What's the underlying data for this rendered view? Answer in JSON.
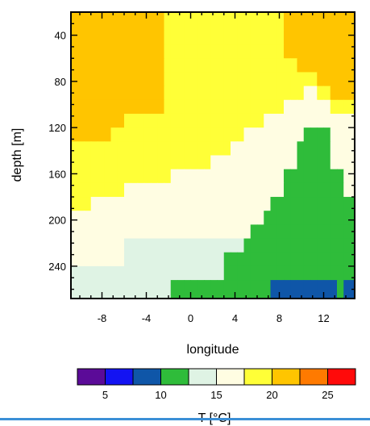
{
  "chart_data": {
    "type": "heatmap",
    "xlabel": "longitude",
    "ylabel": "depth [m]",
    "x_ticks": [
      -8,
      -4,
      0,
      4,
      8,
      12
    ],
    "y_ticks": [
      40,
      80,
      120,
      160,
      200,
      240
    ],
    "xlim": [
      -10.8,
      14.8
    ],
    "ylim": [
      20,
      268
    ],
    "x_cell_edges": [
      -10.8,
      -10.2,
      -9.6,
      -9.0,
      -8.4,
      -7.8,
      -7.2,
      -6.6,
      -6.0,
      -5.4,
      -4.8,
      -4.2,
      -3.6,
      -3.0,
      -2.4,
      -1.8,
      -1.2,
      -0.6,
      0.0,
      0.6,
      1.2,
      1.8,
      2.4,
      3.0,
      3.6,
      4.2,
      4.8,
      5.4,
      6.0,
      6.6,
      7.2,
      7.8,
      8.4,
      9.0,
      9.6,
      10.2,
      10.8,
      11.4,
      12.0,
      12.6,
      13.2,
      13.8,
      14.4,
      14.8
    ],
    "depth_cell_edges": [
      20,
      36,
      48,
      60,
      72,
      84,
      96,
      108,
      120,
      132,
      144,
      156,
      168,
      180,
      192,
      204,
      216,
      228,
      240,
      252,
      268
    ],
    "temperature_levels": [
      [
        26,
        26,
        26,
        26,
        26,
        26,
        26,
        26,
        26,
        26,
        26,
        26,
        26,
        26,
        22,
        22,
        22,
        22,
        22,
        22,
        22,
        22,
        22,
        22,
        22,
        22,
        22,
        22,
        22,
        22,
        22,
        22,
        26,
        26,
        26,
        26,
        26,
        26,
        26,
        26,
        26,
        26,
        26
      ],
      [
        26,
        26,
        26,
        26,
        26,
        26,
        26,
        26,
        26,
        26,
        26,
        26,
        26,
        26,
        22,
        22,
        22,
        22,
        22,
        22,
        22,
        22,
        22,
        22,
        22,
        22,
        22,
        22,
        22,
        22,
        22,
        22,
        26,
        26,
        26,
        26,
        26,
        26,
        26,
        26,
        26,
        26,
        26
      ],
      [
        26,
        26,
        26,
        26,
        26,
        26,
        26,
        26,
        26,
        26,
        26,
        26,
        26,
        26,
        22,
        22,
        22,
        22,
        22,
        22,
        22,
        22,
        22,
        22,
        22,
        22,
        22,
        22,
        22,
        22,
        22,
        22,
        26,
        26,
        26,
        26,
        26,
        26,
        26,
        26,
        26,
        26,
        26
      ],
      [
        26,
        26,
        26,
        26,
        26,
        26,
        26,
        26,
        26,
        26,
        26,
        26,
        26,
        26,
        22,
        22,
        22,
        22,
        22,
        22,
        22,
        22,
        22,
        22,
        22,
        22,
        22,
        22,
        22,
        22,
        22,
        22,
        22,
        22,
        26,
        26,
        26,
        26,
        26,
        26,
        26,
        26,
        26
      ],
      [
        26,
        26,
        26,
        26,
        26,
        26,
        26,
        26,
        26,
        26,
        26,
        26,
        26,
        26,
        22,
        22,
        22,
        22,
        22,
        22,
        22,
        22,
        22,
        22,
        22,
        22,
        22,
        22,
        22,
        22,
        22,
        22,
        22,
        22,
        22,
        22,
        22,
        26,
        26,
        26,
        26,
        26,
        26
      ],
      [
        26,
        26,
        26,
        26,
        26,
        26,
        26,
        26,
        26,
        26,
        26,
        26,
        26,
        26,
        22,
        22,
        22,
        22,
        22,
        22,
        22,
        22,
        22,
        22,
        22,
        22,
        22,
        22,
        22,
        22,
        22,
        22,
        22,
        22,
        22,
        17,
        17,
        22,
        22,
        26,
        26,
        26,
        26
      ],
      [
        26,
        26,
        26,
        26,
        26,
        26,
        26,
        26,
        26,
        26,
        26,
        26,
        26,
        26,
        22,
        22,
        22,
        22,
        22,
        22,
        22,
        22,
        22,
        22,
        22,
        22,
        22,
        22,
        22,
        22,
        22,
        22,
        17,
        17,
        17,
        17,
        17,
        17,
        17,
        22,
        22,
        22,
        22
      ],
      [
        26,
        26,
        26,
        26,
        26,
        26,
        26,
        26,
        22,
        22,
        22,
        22,
        22,
        22,
        22,
        22,
        22,
        22,
        22,
        22,
        22,
        22,
        22,
        22,
        22,
        22,
        22,
        22,
        22,
        17,
        17,
        17,
        17,
        17,
        17,
        17,
        17,
        17,
        17,
        17,
        17,
        17,
        17
      ],
      [
        26,
        26,
        26,
        26,
        26,
        26,
        22,
        22,
        22,
        22,
        22,
        22,
        22,
        22,
        22,
        22,
        22,
        22,
        22,
        22,
        22,
        22,
        22,
        22,
        22,
        22,
        17,
        17,
        17,
        17,
        17,
        17,
        17,
        17,
        17,
        13,
        13,
        13,
        13,
        17,
        17,
        17,
        17
      ],
      [
        22,
        22,
        22,
        22,
        22,
        22,
        22,
        22,
        22,
        22,
        22,
        22,
        22,
        22,
        22,
        22,
        22,
        22,
        22,
        22,
        22,
        22,
        22,
        22,
        17,
        17,
        17,
        17,
        17,
        17,
        17,
        17,
        17,
        17,
        13,
        13,
        13,
        13,
        13,
        17,
        17,
        17,
        17
      ],
      [
        22,
        22,
        22,
        22,
        22,
        22,
        22,
        22,
        22,
        22,
        22,
        22,
        22,
        22,
        22,
        22,
        22,
        22,
        22,
        22,
        22,
        17,
        17,
        17,
        17,
        17,
        17,
        17,
        17,
        17,
        17,
        17,
        17,
        17,
        13,
        13,
        13,
        13,
        13,
        17,
        17,
        17,
        17
      ],
      [
        22,
        22,
        22,
        22,
        22,
        22,
        22,
        22,
        22,
        22,
        22,
        22,
        22,
        22,
        22,
        17,
        17,
        17,
        17,
        17,
        17,
        17,
        17,
        17,
        17,
        17,
        17,
        17,
        17,
        17,
        17,
        17,
        13,
        13,
        13,
        13,
        13,
        13,
        13,
        13,
        13,
        17,
        17
      ],
      [
        22,
        22,
        22,
        22,
        22,
        22,
        22,
        22,
        17,
        17,
        17,
        17,
        17,
        17,
        17,
        17,
        17,
        17,
        17,
        17,
        17,
        17,
        17,
        17,
        17,
        17,
        17,
        17,
        17,
        17,
        17,
        17,
        13,
        13,
        13,
        13,
        13,
        13,
        13,
        13,
        13,
        17,
        17
      ],
      [
        22,
        22,
        22,
        17,
        17,
        17,
        17,
        17,
        17,
        17,
        17,
        17,
        17,
        17,
        17,
        17,
        17,
        17,
        17,
        17,
        17,
        17,
        17,
        17,
        17,
        17,
        17,
        17,
        17,
        17,
        13,
        13,
        13,
        13,
        13,
        13,
        13,
        13,
        13,
        13,
        13,
        13,
        13
      ],
      [
        17,
        17,
        17,
        17,
        17,
        17,
        17,
        17,
        17,
        17,
        17,
        17,
        17,
        17,
        17,
        17,
        17,
        17,
        17,
        17,
        17,
        17,
        17,
        17,
        17,
        17,
        17,
        17,
        17,
        13,
        13,
        13,
        13,
        13,
        13,
        13,
        13,
        13,
        13,
        13,
        13,
        13,
        13
      ],
      [
        17,
        17,
        17,
        17,
        17,
        17,
        17,
        17,
        17,
        17,
        17,
        17,
        17,
        17,
        17,
        17,
        17,
        17,
        17,
        17,
        17,
        17,
        17,
        17,
        17,
        17,
        17,
        13,
        13,
        13,
        13,
        13,
        13,
        13,
        13,
        13,
        13,
        13,
        13,
        13,
        13,
        13,
        13
      ],
      [
        17,
        17,
        17,
        17,
        17,
        17,
        17,
        17,
        15,
        15,
        15,
        15,
        15,
        15,
        15,
        15,
        15,
        15,
        15,
        15,
        15,
        15,
        15,
        15,
        15,
        15,
        13,
        13,
        13,
        13,
        13,
        13,
        13,
        13,
        13,
        13,
        13,
        13,
        13,
        13,
        13,
        13,
        13
      ],
      [
        17,
        17,
        17,
        17,
        17,
        17,
        17,
        17,
        15,
        15,
        15,
        15,
        15,
        15,
        15,
        15,
        15,
        15,
        15,
        15,
        15,
        15,
        15,
        13,
        13,
        13,
        13,
        13,
        13,
        13,
        13,
        13,
        13,
        13,
        13,
        13,
        13,
        13,
        13,
        13,
        13,
        13,
        13
      ],
      [
        15,
        15,
        15,
        15,
        15,
        15,
        15,
        15,
        15,
        15,
        15,
        15,
        15,
        15,
        15,
        15,
        15,
        15,
        15,
        15,
        15,
        15,
        15,
        13,
        13,
        13,
        13,
        13,
        13,
        13,
        13,
        13,
        13,
        13,
        13,
        13,
        13,
        13,
        13,
        13,
        13,
        13,
        13
      ],
      [
        15,
        15,
        15,
        15,
        15,
        15,
        15,
        15,
        15,
        15,
        15,
        15,
        15,
        15,
        15,
        13,
        13,
        13,
        13,
        13,
        13,
        13,
        13,
        13,
        13,
        13,
        13,
        13,
        13,
        13,
        8,
        8,
        8,
        8,
        8,
        8,
        8,
        8,
        8,
        8,
        13,
        8,
        8
      ]
    ],
    "colorbar": {
      "label": "T [°C]",
      "bins": [
        "#5b0b98",
        "#1313f2",
        "#0f56a8",
        "#2fbc3a",
        "#dff3e4",
        "#fffde2",
        "#ffff37",
        "#ffc500",
        "#ff7a00",
        "#ff0a0a"
      ],
      "tick_labels": [
        "5",
        "10",
        "15",
        "20",
        "25"
      ],
      "tick_after_bin": [
        1,
        3,
        5,
        7,
        9
      ]
    },
    "color_map": {
      "8": "#0f56a8",
      "13": "#2fbc3a",
      "15": "#dff3e4",
      "17": "#fffde2",
      "22": "#ffff37",
      "26": "#ffc500"
    },
    "grid": false,
    "legend_position": "bottom"
  }
}
